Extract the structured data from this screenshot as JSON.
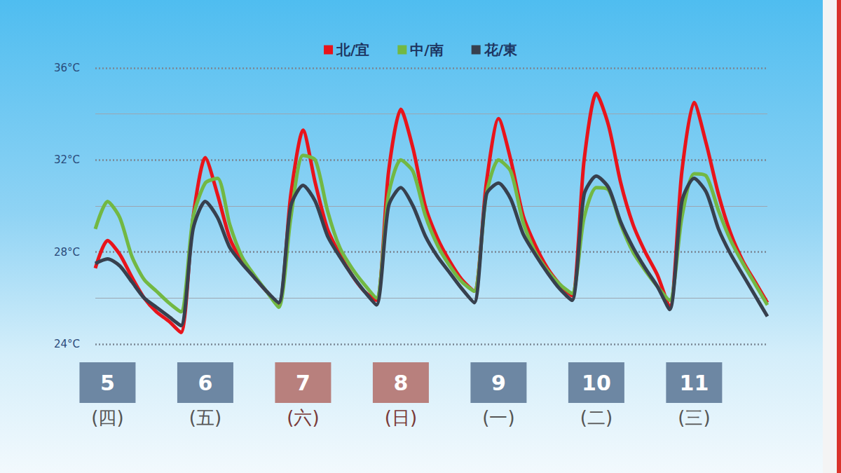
{
  "chart_data": {
    "type": "line",
    "categories": [
      null,
      "5\n(四)",
      null,
      null,
      null,
      null,
      null,
      null,
      null,
      "6\n(五)",
      null,
      null,
      null,
      null,
      null,
      null,
      null,
      "7\n(六)",
      null,
      null,
      null,
      null,
      null,
      null,
      null,
      "8\n(日)",
      null,
      null,
      null,
      null,
      null,
      null,
      null,
      "9\n(一)",
      null,
      null,
      null,
      null,
      null,
      null,
      null,
      "10\n(二)",
      null,
      null,
      null,
      null,
      null,
      null,
      null,
      "11\n(三)",
      null,
      null,
      null,
      null,
      null,
      null
    ],
    "series": [
      {
        "name": "北/宜",
        "color": "#e8141b",
        "values": [
          27.3,
          28.5,
          27.9,
          26.9,
          26.0,
          25.4,
          25.0,
          24.5,
          29.5,
          32.1,
          30.5,
          28.6,
          27.6,
          26.9,
          26.3,
          25.7,
          30.5,
          33.3,
          31.0,
          29.0,
          27.9,
          27.0,
          26.3,
          25.9,
          31.5,
          34.2,
          32.5,
          30.0,
          28.6,
          27.6,
          26.8,
          26.3,
          31.0,
          33.8,
          32.0,
          29.6,
          28.3,
          27.3,
          26.6,
          26.1,
          32.0,
          34.9,
          33.5,
          31.0,
          29.2,
          28.0,
          27.0,
          25.6,
          31.5,
          34.5,
          32.7,
          30.5,
          28.8,
          27.6,
          26.7,
          25.8
        ]
      },
      {
        "name": "中/南",
        "color": "#72b843",
        "values": [
          29.0,
          30.2,
          29.5,
          27.8,
          26.8,
          26.3,
          25.8,
          25.4,
          29.5,
          31.0,
          31.2,
          29.2,
          27.8,
          27.0,
          26.3,
          25.6,
          29.5,
          32.2,
          32.0,
          29.8,
          28.2,
          27.3,
          26.6,
          26.0,
          30.5,
          32.0,
          31.5,
          29.6,
          28.3,
          27.4,
          26.7,
          26.3,
          30.5,
          32.0,
          31.5,
          29.3,
          28.0,
          27.2,
          26.6,
          26.2,
          29.5,
          30.8,
          30.7,
          29.2,
          28.0,
          27.2,
          26.5,
          25.9,
          29.5,
          31.4,
          31.3,
          29.8,
          28.5,
          27.5,
          26.6,
          25.7
        ]
      },
      {
        "name": "花/東",
        "color": "#37404e",
        "values": [
          27.5,
          27.7,
          27.4,
          26.7,
          26.0,
          25.6,
          25.2,
          24.8,
          29.0,
          30.2,
          29.5,
          28.2,
          27.5,
          26.9,
          26.3,
          25.8,
          30.0,
          30.9,
          30.2,
          28.7,
          27.8,
          27.0,
          26.3,
          25.7,
          30.0,
          30.8,
          30.0,
          28.7,
          27.8,
          27.1,
          26.4,
          25.8,
          30.5,
          31.0,
          30.3,
          28.8,
          27.9,
          27.1,
          26.4,
          25.9,
          30.5,
          31.3,
          30.8,
          29.3,
          28.2,
          27.3,
          26.5,
          25.5,
          30.2,
          31.2,
          30.6,
          29.0,
          27.9,
          27.0,
          26.1,
          25.2
        ]
      }
    ],
    "ylim": [
      24,
      36
    ],
    "yticks": [
      {
        "value": 24,
        "label": "24°C"
      },
      {
        "value": 28,
        "label": "28°C"
      },
      {
        "value": 32,
        "label": "32°C"
      },
      {
        "value": 36,
        "label": "36°C"
      }
    ],
    "grid": true,
    "legend": "top"
  }
}
